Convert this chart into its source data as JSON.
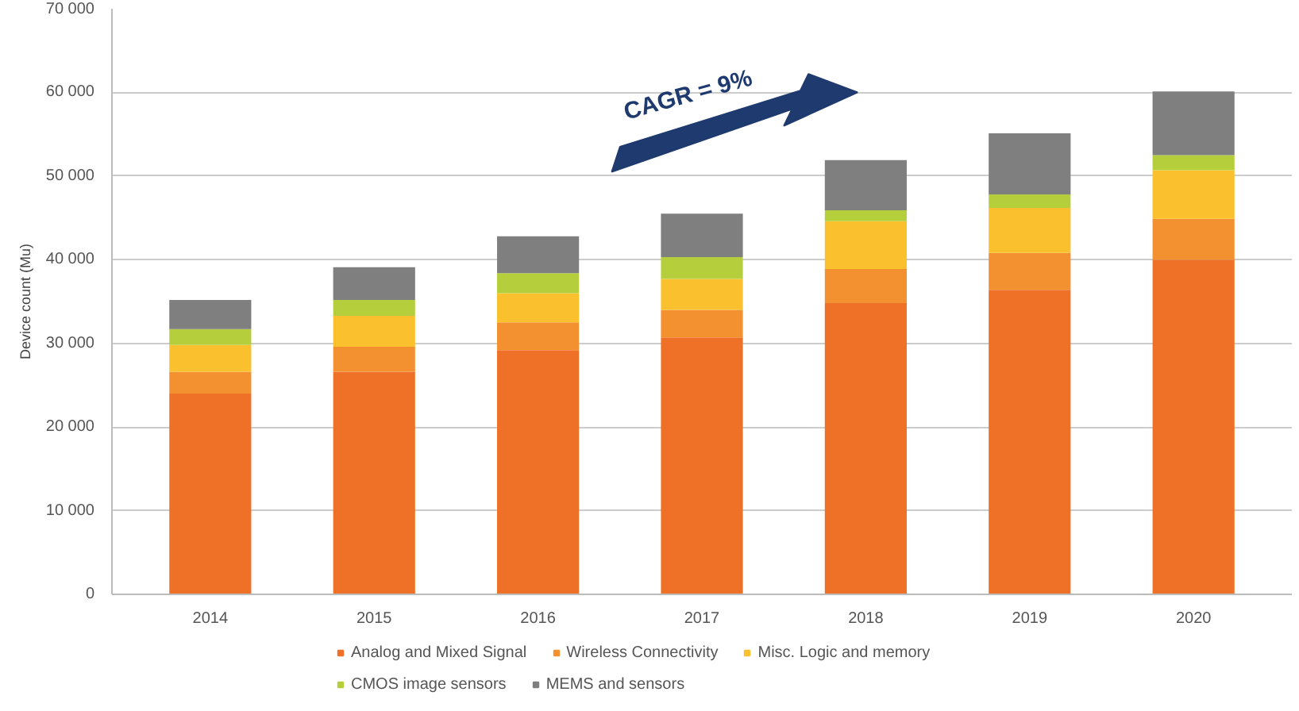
{
  "chart_data": {
    "type": "bar",
    "stacked": true,
    "ylabel": "Device count (Mu)",
    "categories": [
      "2014",
      "2015",
      "2016",
      "2017",
      "2018",
      "2019",
      "2020"
    ],
    "series": [
      {
        "name": "Analog and Mixed Signal",
        "color": "#ee7127",
        "values": [
          24000,
          26600,
          29200,
          30700,
          34800,
          36400,
          40000
        ]
      },
      {
        "name": "Wireless Connectivity",
        "color": "#f39131",
        "values": [
          2600,
          3000,
          3300,
          3300,
          4100,
          4400,
          4900
        ]
      },
      {
        "name": "Misc. Logic and memory",
        "color": "#fbc02d",
        "values": [
          3200,
          3700,
          3500,
          3700,
          5700,
          5400,
          5800
        ]
      },
      {
        "name": "CMOS image sensors",
        "color": "#b5cf3c",
        "values": [
          1900,
          1900,
          2400,
          2600,
          1300,
          1600,
          1800
        ]
      },
      {
        "name": "MEMS and sensors",
        "color": "#7f7f7f",
        "values": [
          3500,
          3900,
          4400,
          5200,
          6000,
          7300,
          7600
        ]
      }
    ],
    "ylim": [
      0,
      70000
    ],
    "yticks": [
      0,
      {
        "value": 10000,
        "label": "10 000"
      },
      {
        "value": 20000,
        "label": "20 000"
      },
      {
        "value": 30000,
        "label": "30 000"
      },
      {
        "value": 40000,
        "label": "40 000"
      },
      {
        "value": 50000,
        "label": "50 000"
      },
      {
        "value": 60000,
        "label": "60 000"
      },
      {
        "value": 70000,
        "label": "70 000"
      }
    ],
    "grid": "y",
    "legend": "bottom",
    "annotations": [
      "CAGR = 9%"
    ]
  }
}
